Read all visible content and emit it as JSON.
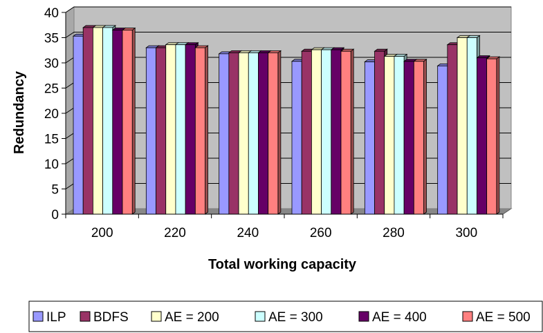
{
  "chart_data": {
    "type": "bar",
    "style": "3d-clustered-column",
    "xlabel": "Total working capacity",
    "ylabel": "Redundancy",
    "ylim": [
      0,
      40
    ],
    "yticks": [
      0,
      5,
      10,
      15,
      20,
      25,
      30,
      35,
      40
    ],
    "categories": [
      "200",
      "220",
      "240",
      "260",
      "280",
      "300"
    ],
    "grid": true,
    "legend_position": "bottom",
    "series": [
      {
        "name": "ILP",
        "color": "#9999ff",
        "values": [
          35.3,
          33.0,
          31.8,
          30.3,
          30.2,
          29.4
        ]
      },
      {
        "name": "BDFS",
        "color": "#993366",
        "values": [
          37.0,
          33.0,
          32.0,
          32.3,
          32.3,
          33.6
        ]
      },
      {
        "name": "AE = 200",
        "color": "#ffffcc",
        "values": [
          37.0,
          33.6,
          32.0,
          32.6,
          31.3,
          35.0
        ]
      },
      {
        "name": "AE = 300",
        "color": "#ccffff",
        "values": [
          37.0,
          33.6,
          32.0,
          32.6,
          31.3,
          35.0
        ]
      },
      {
        "name": "AE = 400",
        "color": "#660066",
        "values": [
          36.5,
          33.6,
          32.0,
          32.6,
          30.3,
          31.0
        ]
      },
      {
        "name": "AE = 500",
        "color": "#ff8080",
        "values": [
          36.5,
          33.0,
          32.0,
          32.3,
          30.3,
          30.8
        ]
      }
    ]
  }
}
